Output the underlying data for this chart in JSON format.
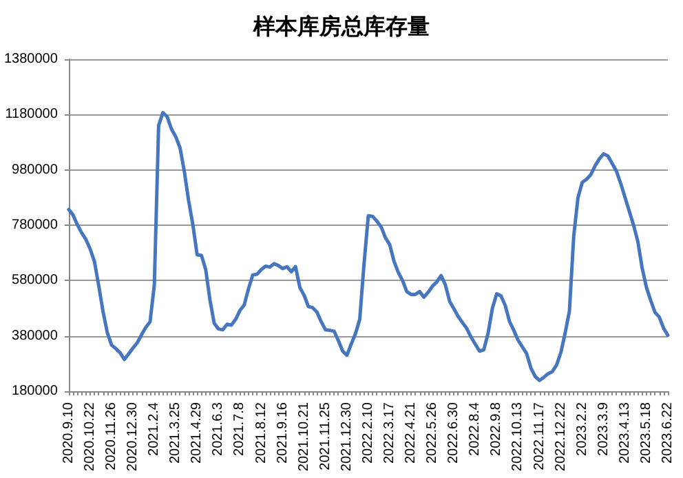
{
  "chart_data": {
    "type": "line",
    "title": "样本库房总库存量",
    "categories": [
      "2020.9.10",
      null,
      null,
      null,
      null,
      "2020.10.22",
      null,
      null,
      null,
      null,
      "2020.11.26",
      null,
      null,
      null,
      null,
      "2020.12.30",
      null,
      null,
      null,
      null,
      "2021.2.4",
      null,
      null,
      null,
      null,
      "2021.3.25",
      null,
      null,
      null,
      null,
      "2021.4.29",
      null,
      null,
      null,
      null,
      "2021.6.3",
      null,
      null,
      null,
      null,
      "2021.7.8",
      null,
      null,
      null,
      null,
      "2021.8.12",
      null,
      null,
      null,
      null,
      "2021.9.16",
      null,
      null,
      null,
      null,
      "2021.10.21",
      null,
      null,
      null,
      null,
      "2021.11.25",
      null,
      null,
      null,
      null,
      "2021.12.30",
      null,
      null,
      null,
      null,
      "2022.2.10",
      null,
      null,
      null,
      null,
      "2022.3.17",
      null,
      null,
      null,
      null,
      "2022.4.21",
      null,
      null,
      null,
      null,
      "2022.5.26",
      null,
      null,
      null,
      null,
      "2022.6.30",
      null,
      null,
      null,
      null,
      "2022.8.4",
      null,
      null,
      null,
      null,
      "2022.9.8",
      null,
      null,
      null,
      null,
      "2022.10.13",
      null,
      null,
      null,
      null,
      "2022.11.17",
      null,
      null,
      null,
      null,
      "2022.12.22",
      null,
      null,
      null,
      null,
      "2023.2.2",
      null,
      null,
      null,
      null,
      "2023.3.9",
      null,
      null,
      null,
      null,
      "2023.4.13",
      null,
      null,
      null,
      null,
      "2023.5.18",
      null,
      null,
      null,
      null,
      "2023.6.22"
    ],
    "series": [
      {
        "color": "#4677be",
        "values": [
          837000,
          817000,
          782000,
          753000,
          729000,
          694000,
          649000,
          562000,
          469000,
          392000,
          347000,
          334000,
          319000,
          295000,
          315000,
          336000,
          355000,
          384000,
          411000,
          431000,
          565000,
          1140000,
          1187000,
          1172000,
          1128000,
          1100000,
          1060000,
          975000,
          870000,
          782000,
          673000,
          671000,
          620000,
          510000,
          425000,
          405000,
          402000,
          422000,
          419000,
          440000,
          472000,
          492000,
          550000,
          600000,
          603000,
          620000,
          632000,
          629000,
          641000,
          634000,
          623000,
          630000,
          612000,
          630000,
          555000,
          527000,
          486000,
          482000,
          466000,
          431000,
          402000,
          400000,
          397000,
          363000,
          325000,
          310000,
          350000,
          388000,
          440000,
          640000,
          814000,
          812000,
          795000,
          774000,
          735000,
          710000,
          650000,
          610000,
          580000,
          540000,
          530000,
          530000,
          540000,
          520000,
          538000,
          560000,
          575000,
          598000,
          565000,
          505000,
          478000,
          450000,
          428000,
          407000,
          376000,
          350000,
          325000,
          330000,
          390000,
          480000,
          532000,
          525000,
          490000,
          432000,
          400000,
          365000,
          340000,
          316000,
          264000,
          233000,
          219000,
          230000,
          243000,
          251000,
          275000,
          320000,
          390000,
          470000,
          740000,
          880000,
          935000,
          946000,
          963000,
          995000,
          1020000,
          1038000,
          1030000,
          1003000,
          975000,
          930000,
          880000,
          830000,
          780000,
          720000,
          625000,
          555000,
          508000,
          465000,
          448000,
          408000,
          382000
        ]
      }
    ],
    "ylim": [
      180000,
      1380000
    ],
    "yticks": [
      180000,
      380000,
      580000,
      780000,
      980000,
      1180000,
      1380000
    ],
    "grid": "y",
    "marker": "none",
    "line_style": "solid"
  }
}
